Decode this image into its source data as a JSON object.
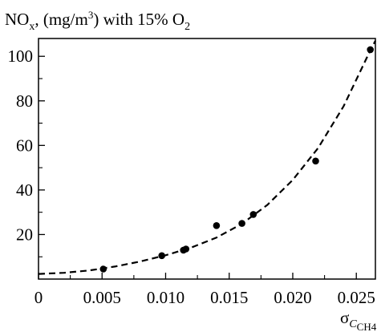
{
  "chart_data": {
    "type": "scatter",
    "ylabel": {
      "parts": [
        "NO",
        "x",
        ", (mg/m",
        "3",
        ") with 15% O",
        "2"
      ]
    },
    "xlabel": {
      "parts": [
        "σ",
        "C",
        "CH4"
      ]
    },
    "xlim": [
      0,
      0.0265
    ],
    "ylim": [
      0,
      108
    ],
    "xticks": [
      0,
      0.005,
      0.01,
      0.015,
      0.02,
      0.025
    ],
    "xtick_labels": [
      "0",
      "0.005",
      "0.010",
      "0.015",
      "0.020",
      "0.025"
    ],
    "yticks": [
      20,
      40,
      60,
      80,
      100
    ],
    "ytick_labels": [
      "20",
      "40",
      "60",
      "80",
      "100"
    ],
    "grid": false,
    "series": [
      {
        "kind": "points",
        "x": [
          0.0051,
          0.0097,
          0.0114,
          0.0116,
          0.014,
          0.016,
          0.0169,
          0.0218,
          0.0261
        ],
        "y": [
          4.5,
          10.5,
          13,
          13.5,
          24,
          25,
          29,
          53,
          103
        ]
      },
      {
        "kind": "fit-curve",
        "style": "dashed",
        "x": [
          0,
          0.002,
          0.004,
          0.006,
          0.008,
          0.01,
          0.012,
          0.014,
          0.016,
          0.018,
          0.02,
          0.022,
          0.024,
          0.026,
          0.0265
        ],
        "y": [
          2.3,
          2.8,
          3.9,
          5.6,
          7.9,
          10.7,
          14.1,
          18.6,
          24.8,
          33.3,
          44.5,
          58.9,
          77.6,
          101.5,
          107
        ]
      }
    ]
  }
}
